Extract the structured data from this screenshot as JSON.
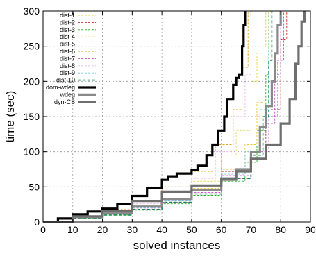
{
  "chart_data": {
    "type": "line",
    "xlabel": "solved instances",
    "ylabel": "time (sec)",
    "xlim": [
      0,
      90
    ],
    "ylim": [
      0,
      300
    ],
    "xticks": [
      0,
      10,
      20,
      30,
      40,
      50,
      60,
      70,
      80,
      90
    ],
    "yticks": [
      0,
      50,
      100,
      150,
      200,
      250,
      300
    ],
    "grid": true,
    "legend_position": "top-left",
    "series": [
      {
        "name": "dist-1",
        "color": "#e8d44a",
        "style": "thin-dashed",
        "points": [
          [
            0,
            0
          ],
          [
            10,
            8
          ],
          [
            20,
            14
          ],
          [
            30,
            24
          ],
          [
            40,
            40
          ],
          [
            50,
            58
          ],
          [
            60,
            95
          ],
          [
            65,
            130
          ],
          [
            70,
            200
          ],
          [
            72,
            240
          ],
          [
            74,
            300
          ]
        ]
      },
      {
        "name": "dist-2",
        "color": "#c03030",
        "style": "thin-dashed",
        "points": [
          [
            0,
            0
          ],
          [
            10,
            6
          ],
          [
            20,
            12
          ],
          [
            30,
            20
          ],
          [
            40,
            32
          ],
          [
            50,
            46
          ],
          [
            60,
            72
          ],
          [
            70,
            105
          ],
          [
            75,
            160
          ],
          [
            80,
            260
          ],
          [
            82,
            300
          ]
        ]
      },
      {
        "name": "dist-3",
        "color": "#22b022",
        "style": "thin-dashed",
        "points": [
          [
            0,
            0
          ],
          [
            10,
            5
          ],
          [
            20,
            10
          ],
          [
            30,
            17
          ],
          [
            40,
            26
          ],
          [
            50,
            38
          ],
          [
            60,
            58
          ],
          [
            68,
            85
          ],
          [
            72,
            130
          ],
          [
            75,
            210
          ],
          [
            76,
            300
          ]
        ]
      },
      {
        "name": "dist-4",
        "color": "#e8c830",
        "style": "thin-dashed",
        "points": [
          [
            0,
            0
          ],
          [
            10,
            7
          ],
          [
            20,
            14
          ],
          [
            30,
            22
          ],
          [
            40,
            34
          ],
          [
            50,
            48
          ],
          [
            60,
            75
          ],
          [
            68,
            110
          ],
          [
            72,
            170
          ],
          [
            74,
            250
          ],
          [
            75,
            300
          ]
        ]
      },
      {
        "name": "dist-5",
        "color": "#d040d0",
        "style": "thin-dashed",
        "points": [
          [
            0,
            0
          ],
          [
            10,
            6
          ],
          [
            20,
            12
          ],
          [
            30,
            20
          ],
          [
            40,
            30
          ],
          [
            50,
            42
          ],
          [
            60,
            66
          ],
          [
            70,
            100
          ],
          [
            76,
            150
          ],
          [
            79,
            230
          ],
          [
            81,
            300
          ]
        ]
      },
      {
        "name": "dist-6",
        "color": "#e0a020",
        "style": "thin-dashed",
        "points": [
          [
            0,
            0
          ],
          [
            10,
            9
          ],
          [
            20,
            18
          ],
          [
            30,
            30
          ],
          [
            40,
            50
          ],
          [
            50,
            72
          ],
          [
            58,
            110
          ],
          [
            64,
            160
          ],
          [
            67,
            220
          ],
          [
            69,
            300
          ]
        ]
      },
      {
        "name": "dist-7",
        "color": "#c050c0",
        "style": "thin-dashed",
        "points": [
          [
            0,
            0
          ],
          [
            10,
            6
          ],
          [
            20,
            11
          ],
          [
            30,
            18
          ],
          [
            40,
            28
          ],
          [
            50,
            40
          ],
          [
            60,
            62
          ],
          [
            70,
            95
          ],
          [
            75,
            140
          ],
          [
            78,
            210
          ],
          [
            80,
            300
          ]
        ]
      },
      {
        "name": "dist-8",
        "color": "#e8b8e8",
        "style": "thin-dashed",
        "points": [
          [
            0,
            0
          ],
          [
            10,
            8
          ],
          [
            20,
            15
          ],
          [
            30,
            26
          ],
          [
            40,
            42
          ],
          [
            50,
            62
          ],
          [
            58,
            100
          ],
          [
            64,
            150
          ],
          [
            68,
            210
          ],
          [
            70,
            300
          ]
        ]
      },
      {
        "name": "dist-9",
        "color": "#70c8e8",
        "style": "thin-dashed",
        "points": [
          [
            0,
            0
          ],
          [
            10,
            6
          ],
          [
            20,
            12
          ],
          [
            30,
            20
          ],
          [
            40,
            30
          ],
          [
            50,
            44
          ],
          [
            60,
            68
          ],
          [
            68,
            100
          ],
          [
            73,
            160
          ],
          [
            76,
            240
          ],
          [
            77,
            300
          ]
        ]
      },
      {
        "name": "dist-10",
        "color": "#108a50",
        "style": "medium-dashed",
        "points": [
          [
            0,
            0
          ],
          [
            10,
            5
          ],
          [
            20,
            10
          ],
          [
            30,
            18
          ],
          [
            40,
            28
          ],
          [
            50,
            40
          ],
          [
            60,
            62
          ],
          [
            70,
            95
          ],
          [
            74,
            150
          ],
          [
            76,
            230
          ],
          [
            77,
            300
          ]
        ]
      },
      {
        "name": "dom-wdeg",
        "color": "#000000",
        "style": "thick",
        "points": [
          [
            0,
            0
          ],
          [
            5,
            5
          ],
          [
            10,
            11
          ],
          [
            15,
            15
          ],
          [
            20,
            19
          ],
          [
            25,
            26
          ],
          [
            30,
            37
          ],
          [
            35,
            48
          ],
          [
            40,
            60
          ],
          [
            42,
            65
          ],
          [
            45,
            69
          ],
          [
            50,
            74
          ],
          [
            52,
            80
          ],
          [
            55,
            95
          ],
          [
            57,
            110
          ],
          [
            59,
            130
          ],
          [
            61,
            150
          ],
          [
            62,
            175
          ],
          [
            64,
            195
          ],
          [
            65,
            205
          ],
          [
            66,
            210
          ],
          [
            67,
            250
          ],
          [
            67.5,
            280
          ],
          [
            68,
            300
          ]
        ]
      },
      {
        "name": "wdeg",
        "color": "#8a8a8a",
        "style": "thick",
        "points": [
          [
            0,
            0
          ],
          [
            10,
            7
          ],
          [
            20,
            13
          ],
          [
            30,
            22
          ],
          [
            40,
            32
          ],
          [
            50,
            45
          ],
          [
            60,
            60
          ],
          [
            65,
            75
          ],
          [
            70,
            100
          ],
          [
            73,
            135
          ],
          [
            75,
            165
          ],
          [
            77,
            200
          ],
          [
            78,
            240
          ],
          [
            79,
            280
          ],
          [
            80,
            300
          ]
        ]
      },
      {
        "name": "dyn-CS",
        "color": "#6e6e6e",
        "style": "thick",
        "points": [
          [
            0,
            0
          ],
          [
            10,
            8
          ],
          [
            20,
            16
          ],
          [
            30,
            30
          ],
          [
            40,
            43
          ],
          [
            50,
            52
          ],
          [
            60,
            62
          ],
          [
            65,
            72
          ],
          [
            70,
            90
          ],
          [
            75,
            110
          ],
          [
            80,
            140
          ],
          [
            83,
            175
          ],
          [
            85,
            225
          ],
          [
            86,
            250
          ],
          [
            87,
            285
          ],
          [
            88,
            300
          ]
        ]
      }
    ]
  }
}
